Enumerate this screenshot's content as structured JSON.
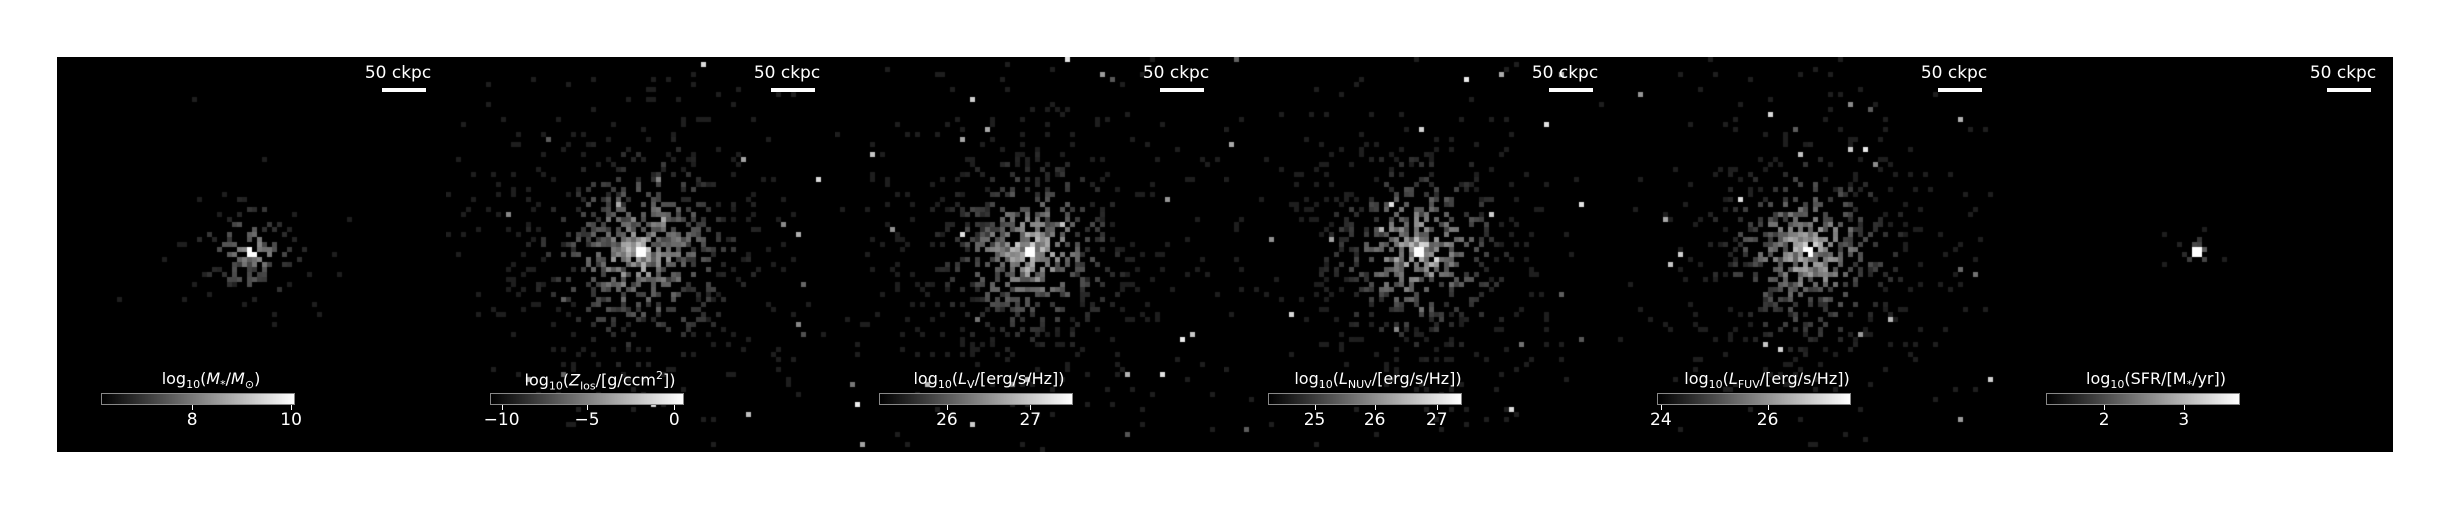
{
  "figure": {
    "panels": [
      {
        "scalebar": "50 ckpc",
        "colorbar_label": "log<sub>10</sub>(<i>M</i><sub>*</sub>/<i>M</i><sub>⊙</sub>)",
        "ticks": [
          {
            "label": "8",
            "frac": 0.47
          },
          {
            "label": "10",
            "frac": 0.98
          }
        ],
        "image": {
          "concentration": "very-high",
          "spread": "small",
          "intensity": "medium"
        }
      },
      {
        "scalebar": "50 ckpc",
        "colorbar_label": "log<sub>10</sub>(<i>Z</i><sub>los</sub>/[g/ccm<sup>2</sup>])",
        "ticks": [
          {
            "label": "−10",
            "frac": 0.06
          },
          {
            "label": "−5",
            "frac": 0.5
          },
          {
            "label": "0",
            "frac": 0.95
          }
        ],
        "image": {
          "concentration": "high",
          "spread": "large",
          "intensity": "high"
        }
      },
      {
        "scalebar": "50 ckpc",
        "colorbar_label": "log<sub>10</sub>(<i>L</i><sub>V</sub>/[erg/s/Hz])",
        "ticks": [
          {
            "label": "26",
            "frac": 0.35
          },
          {
            "label": "27",
            "frac": 0.78
          }
        ],
        "image": {
          "concentration": "medium",
          "spread": "large",
          "intensity": "very-high"
        }
      },
      {
        "scalebar": "50 ckpc",
        "colorbar_label": "log<sub>10</sub>(<i>L</i><sub>NUV</sub>/[erg/s/Hz])",
        "ticks": [
          {
            "label": "25",
            "frac": 0.24
          },
          {
            "label": "26",
            "frac": 0.55
          },
          {
            "label": "27",
            "frac": 0.87
          }
        ],
        "image": {
          "concentration": "medium",
          "spread": "large",
          "intensity": "very-high"
        }
      },
      {
        "scalebar": "50 ckpc",
        "colorbar_label": "log<sub>10</sub>(<i>L</i><sub>FUV</sub>/[erg/s/Hz])",
        "ticks": [
          {
            "label": "24",
            "frac": 0.02
          },
          {
            "label": "26",
            "frac": 0.57
          }
        ],
        "image": {
          "concentration": "medium",
          "spread": "large",
          "intensity": "very-high"
        }
      },
      {
        "scalebar": "50 ckpc",
        "colorbar_label": "log<sub>10</sub>(SFR/[M<sub>*</sub>/yr])",
        "ticks": [
          {
            "label": "2",
            "frac": 0.3
          },
          {
            "label": "3",
            "frac": 0.71
          }
        ],
        "image": {
          "concentration": "very-high",
          "spread": "tiny",
          "intensity": "low"
        }
      }
    ]
  },
  "colors": {
    "background": "#000000",
    "foreground": "#ffffff",
    "page": "#ffffff"
  }
}
